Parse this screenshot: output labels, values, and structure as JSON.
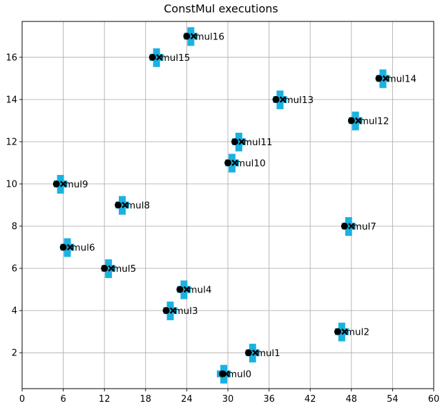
{
  "chart_data": {
    "type": "scatter",
    "title": "ConstMul executions",
    "xlabel": "",
    "ylabel": "",
    "xlim": [
      0,
      60
    ],
    "ylim": [
      0.3,
      17.7
    ],
    "xticks": [
      0,
      6,
      12,
      18,
      24,
      30,
      36,
      42,
      48,
      54,
      60
    ],
    "yticks": [
      2,
      4,
      6,
      8,
      10,
      12,
      14,
      16
    ],
    "grid": true,
    "colors": {
      "start": "#000000",
      "end": "#000000",
      "marker": "#1ab2e0"
    },
    "points": [
      {
        "label": "mul0",
        "start": 29.2,
        "end": 29.8,
        "y": 1
      },
      {
        "label": "mul1",
        "start": 33.0,
        "end": 34.0,
        "y": 2
      },
      {
        "label": "mul2",
        "start": 46.0,
        "end": 47.0,
        "y": 3
      },
      {
        "label": "mul3",
        "start": 21.0,
        "end": 22.0,
        "y": 4
      },
      {
        "label": "mul4",
        "start": 23.0,
        "end": 24.0,
        "y": 5
      },
      {
        "label": "mul5",
        "start": 12.0,
        "end": 13.0,
        "y": 6
      },
      {
        "label": "mul6",
        "start": 6.0,
        "end": 7.0,
        "y": 7
      },
      {
        "label": "mul7",
        "start": 47.0,
        "end": 48.0,
        "y": 8
      },
      {
        "label": "mul8",
        "start": 14.0,
        "end": 15.0,
        "y": 9
      },
      {
        "label": "mul9",
        "start": 5.0,
        "end": 6.0,
        "y": 10
      },
      {
        "label": "mul10",
        "start": 30.0,
        "end": 31.0,
        "y": 11
      },
      {
        "label": "mul11",
        "start": 31.0,
        "end": 32.0,
        "y": 12
      },
      {
        "label": "mul12",
        "start": 48.0,
        "end": 49.0,
        "y": 13
      },
      {
        "label": "mul13",
        "start": 37.0,
        "end": 38.0,
        "y": 14
      },
      {
        "label": "mul14",
        "start": 52.0,
        "end": 53.0,
        "y": 15
      },
      {
        "label": "mul15",
        "start": 19.0,
        "end": 20.0,
        "y": 16
      },
      {
        "label": "mul16",
        "start": 24.0,
        "end": 25.0,
        "y": 17
      }
    ]
  }
}
